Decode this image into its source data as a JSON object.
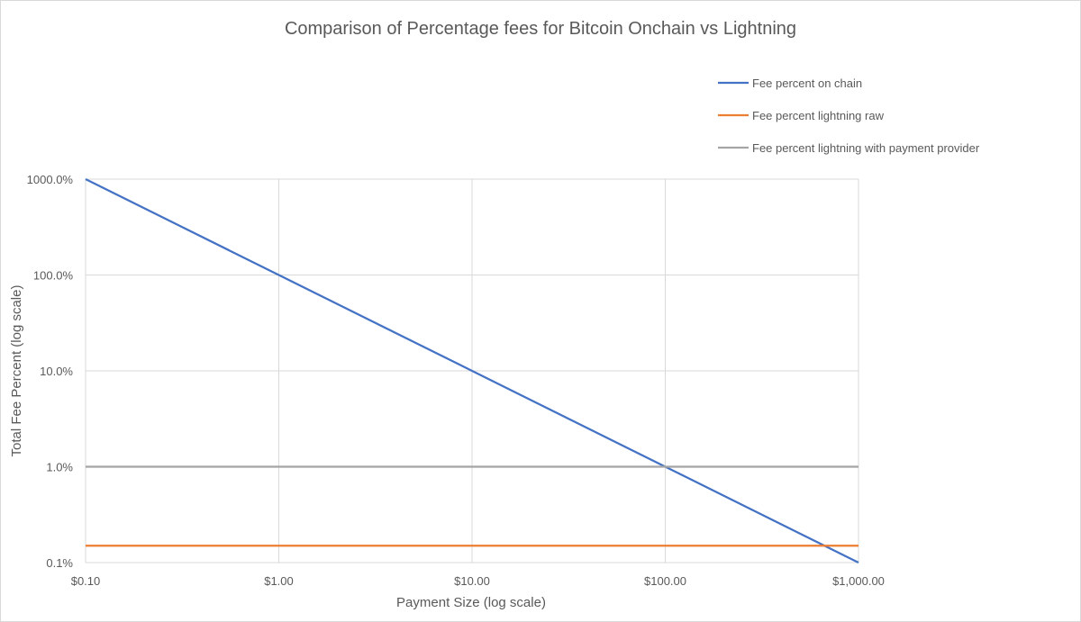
{
  "chart_data": {
    "type": "line",
    "title": "Comparison of Percentage fees for Bitcoin Onchain vs Lightning",
    "xlabel": "Payment Size (log scale)",
    "ylabel": "Total Fee Percent (log scale)",
    "x_scale": "log",
    "y_scale": "log",
    "xlim": [
      0.1,
      1000
    ],
    "ylim": [
      0.1,
      1000
    ],
    "x_ticks": [
      {
        "value": 0.1,
        "label": "$0.10"
      },
      {
        "value": 1,
        "label": "$1.00"
      },
      {
        "value": 10,
        "label": "$10.00"
      },
      {
        "value": 100,
        "label": "$100.00"
      },
      {
        "value": 1000,
        "label": "$1,000.00"
      }
    ],
    "y_ticks": [
      {
        "value": 0.1,
        "label": "0.1%"
      },
      {
        "value": 1,
        "label": "1.0%"
      },
      {
        "value": 10,
        "label": "10.0%"
      },
      {
        "value": 100,
        "label": "100.0%"
      },
      {
        "value": 1000,
        "label": "1000.0%"
      }
    ],
    "grid": true,
    "legend_position": "top-right",
    "series": [
      {
        "name": "Fee percent on chain",
        "color": "#4472c4",
        "x": [
          0.1,
          1,
          10,
          100,
          1000
        ],
        "y": [
          1000,
          100,
          10,
          1,
          0.1
        ]
      },
      {
        "name": "Fee percent lightning raw",
        "color": "#ed7d31",
        "x": [
          0.1,
          1,
          10,
          100,
          1000
        ],
        "y": [
          0.15,
          0.15,
          0.15,
          0.15,
          0.15
        ]
      },
      {
        "name": "Fee percent lightning with payment provider",
        "color": "#a5a5a5",
        "x": [
          0.1,
          1,
          10,
          100,
          1000
        ],
        "y": [
          1,
          1,
          1,
          1,
          1
        ]
      }
    ]
  }
}
